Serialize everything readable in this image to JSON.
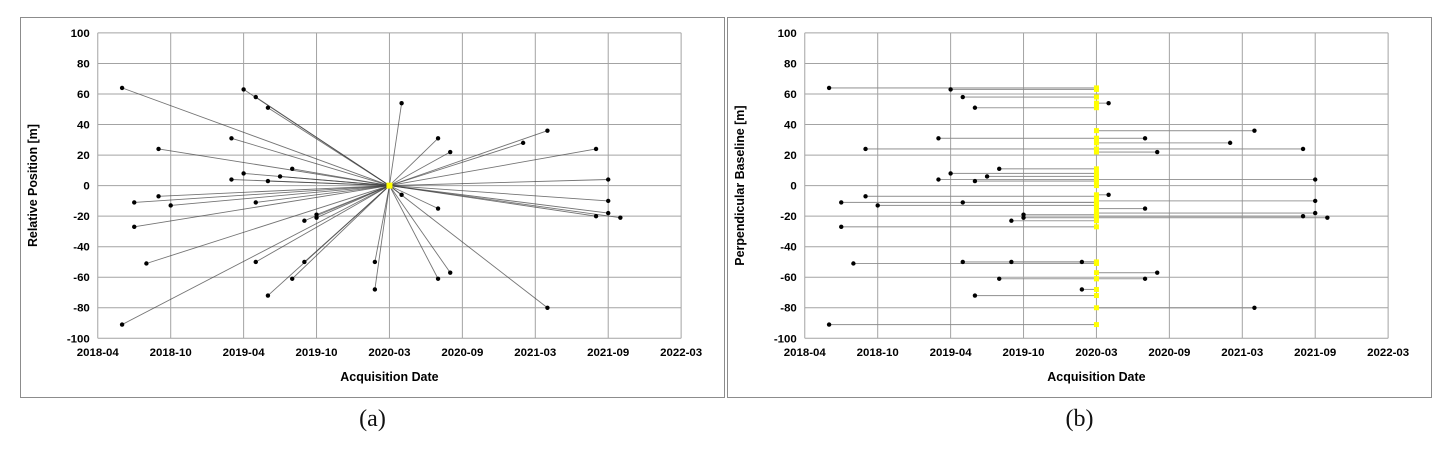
{
  "figure": {
    "captions": {
      "a": "(a)",
      "b": "(b)"
    }
  },
  "colors": {
    "grid": "#a3a3a3",
    "panel_border": "#8c8c8c",
    "marker": "#000000",
    "master_marker": "#ffff00",
    "line_a": "#404040",
    "line_b": "#8a8a8a"
  },
  "chart_data": [
    {
      "id": "a",
      "type": "scatter",
      "connection": "radial",
      "xlabel": "Acquisition Date",
      "ylabel": "Relative Position [m]",
      "x_tick_labels": [
        "2018-04",
        "2018-10",
        "2019-04",
        "2019-10",
        "2020-03",
        "2020-09",
        "2021-03",
        "2021-09",
        "2022-03"
      ],
      "x_tick_months": [
        0,
        6,
        12,
        18,
        23,
        29,
        35,
        41,
        47
      ],
      "y_ticks": [
        100,
        80,
        60,
        40,
        20,
        0,
        -20,
        -40,
        -60,
        -80,
        -100
      ],
      "ylim": [
        -100,
        100
      ],
      "grid": true,
      "legend": "none",
      "master": {
        "date": "2020-03",
        "value": 0
      },
      "points": [
        [
          "2018-06",
          64
        ],
        [
          "2018-06",
          -91
        ],
        [
          "2018-07",
          -11
        ],
        [
          "2018-07",
          -27
        ],
        [
          "2018-08",
          -51
        ],
        [
          "2018-09",
          24
        ],
        [
          "2018-09",
          -7
        ],
        [
          "2018-10",
          -13
        ],
        [
          "2019-03",
          31
        ],
        [
          "2019-03",
          4
        ],
        [
          "2019-04",
          63
        ],
        [
          "2019-04",
          8
        ],
        [
          "2019-05",
          58
        ],
        [
          "2019-05",
          -11
        ],
        [
          "2019-05",
          -50
        ],
        [
          "2019-06",
          51
        ],
        [
          "2019-06",
          3
        ],
        [
          "2019-06",
          -72
        ],
        [
          "2019-07",
          6
        ],
        [
          "2019-08",
          11
        ],
        [
          "2019-08",
          -61
        ],
        [
          "2019-09",
          -23
        ],
        [
          "2019-09",
          -50
        ],
        [
          "2019-10",
          -19
        ],
        [
          "2019-10",
          -21
        ],
        [
          "2020-02",
          -50
        ],
        [
          "2020-02",
          -68
        ],
        [
          "2020-04",
          54
        ],
        [
          "2020-04",
          -6
        ],
        [
          "2020-07",
          31
        ],
        [
          "2020-07",
          -15
        ],
        [
          "2020-07",
          -61
        ],
        [
          "2020-08",
          22
        ],
        [
          "2020-08",
          -57
        ],
        [
          "2021-02",
          28
        ],
        [
          "2021-04",
          36
        ],
        [
          "2021-04",
          -80
        ],
        [
          "2021-08",
          24
        ],
        [
          "2021-08",
          -20
        ],
        [
          "2021-09",
          4
        ],
        [
          "2021-09",
          -18
        ],
        [
          "2021-09",
          -10
        ],
        [
          "2021-10",
          -21
        ]
      ]
    },
    {
      "id": "b",
      "type": "scatter",
      "connection": "horizontal",
      "xlabel": "Acquisition Date",
      "ylabel": "Perpendicular Baseline [m]",
      "x_tick_labels": [
        "2018-04",
        "2018-10",
        "2019-04",
        "2019-10",
        "2020-03",
        "2020-09",
        "2021-03",
        "2021-09",
        "2022-03"
      ],
      "x_tick_months": [
        0,
        6,
        12,
        18,
        23,
        29,
        35,
        41,
        47
      ],
      "y_ticks": [
        100,
        80,
        60,
        40,
        20,
        0,
        -20,
        -40,
        -60,
        -80,
        -100
      ],
      "ylim": [
        -100,
        100
      ],
      "grid": true,
      "legend": "none",
      "master": {
        "date": "2020-03",
        "value": 0
      },
      "points": [
        [
          "2018-06",
          64
        ],
        [
          "2018-06",
          -91
        ],
        [
          "2018-07",
          -11
        ],
        [
          "2018-07",
          -27
        ],
        [
          "2018-08",
          -51
        ],
        [
          "2018-09",
          24
        ],
        [
          "2018-09",
          -7
        ],
        [
          "2018-10",
          -13
        ],
        [
          "2019-03",
          31
        ],
        [
          "2019-03",
          4
        ],
        [
          "2019-04",
          63
        ],
        [
          "2019-04",
          8
        ],
        [
          "2019-05",
          58
        ],
        [
          "2019-05",
          -11
        ],
        [
          "2019-05",
          -50
        ],
        [
          "2019-06",
          51
        ],
        [
          "2019-06",
          3
        ],
        [
          "2019-06",
          -72
        ],
        [
          "2019-07",
          6
        ],
        [
          "2019-08",
          11
        ],
        [
          "2019-08",
          -61
        ],
        [
          "2019-09",
          -23
        ],
        [
          "2019-09",
          -50
        ],
        [
          "2019-10",
          -19
        ],
        [
          "2019-10",
          -21
        ],
        [
          "2020-02",
          -50
        ],
        [
          "2020-02",
          -68
        ],
        [
          "2020-04",
          54
        ],
        [
          "2020-04",
          -6
        ],
        [
          "2020-07",
          31
        ],
        [
          "2020-07",
          -15
        ],
        [
          "2020-07",
          -61
        ],
        [
          "2020-08",
          22
        ],
        [
          "2020-08",
          -57
        ],
        [
          "2021-02",
          28
        ],
        [
          "2021-04",
          36
        ],
        [
          "2021-04",
          -80
        ],
        [
          "2021-08",
          24
        ],
        [
          "2021-08",
          -20
        ],
        [
          "2021-09",
          4
        ],
        [
          "2021-09",
          -18
        ],
        [
          "2021-09",
          -10
        ],
        [
          "2021-10",
          -21
        ]
      ]
    }
  ]
}
